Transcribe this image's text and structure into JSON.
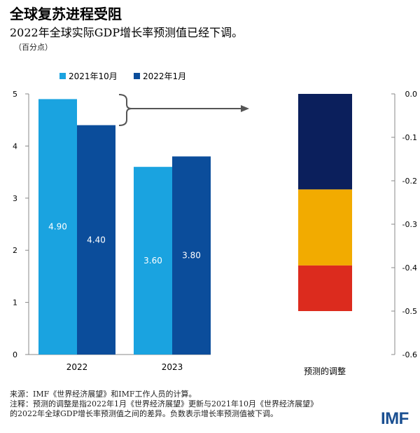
{
  "title": "全球复苏进程受阻",
  "subtitle": "2022年全球实际GDP增长率预测值已经下调。",
  "unit": "（百分点）",
  "logo": "IMF",
  "footer": {
    "source": "来源：IMF《世界经济展望》和IMF工作人员的计算。",
    "note_line1": "注释：预测的调整是指2022年1月《世界经济展望》更新与2021年10月《世界经济展望》",
    "note_line2": "的2022年全球GDP增长率预测值之间的差异。负数表示增长率预测值被下调。"
  },
  "colors": {
    "oct2021": "#1aa3e0",
    "jan2022": "#0b4d9b",
    "segment1": "#0b1f5c",
    "segment2": "#f2ab00",
    "segment3": "#dc2b1e",
    "axis": "#888888"
  },
  "chart_data": [
    {
      "type": "bar",
      "categories": [
        "2022",
        "2023"
      ],
      "series": [
        {
          "name": "2021年10月",
          "values": [
            4.9,
            3.6
          ],
          "labels": [
            "4.90",
            "3.60"
          ]
        },
        {
          "name": "2022年1月",
          "values": [
            4.4,
            3.8
          ],
          "labels": [
            "4.40",
            "3.80"
          ]
        }
      ],
      "ylim": [
        0,
        5
      ],
      "yticks": [
        "0",
        "1",
        "2",
        "3",
        "4",
        "5"
      ],
      "legend": "top-left"
    },
    {
      "type": "bar",
      "stacked": true,
      "xlabel": "预测的调整",
      "segments": [
        {
          "from": 0.0,
          "to": -0.22
        },
        {
          "from": -0.22,
          "to": -0.395
        },
        {
          "from": -0.395,
          "to": -0.5
        }
      ],
      "ylim": [
        -0.6,
        0.0
      ],
      "yticks": [
        "0.0",
        "-0.1",
        "-0.2",
        "-0.3",
        "-0.4",
        "-0.5",
        "-0.6"
      ]
    }
  ]
}
